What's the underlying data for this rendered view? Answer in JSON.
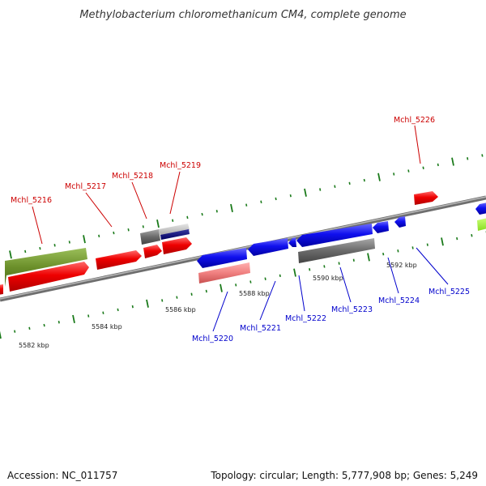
{
  "title": "Methylobacterium chloromethanicum CM4, complete genome",
  "footer": {
    "accession": "Accession: NC_011757",
    "stats": "Topology: circular; Length: 5,777,908 bp; Genes: 5,249"
  },
  "ruler_labels": [
    "5582 kbp",
    "5584 kbp",
    "5586 kbp",
    "5588 kbp",
    "5590 kbp",
    "5592 kbp"
  ],
  "colors": {
    "forward_label": "#cc0000",
    "reverse_label": "#0000cc",
    "tick_marks": "#1a7a1a",
    "backbone": "#888888"
  },
  "forward_genes": [
    {
      "label": "Mchl_5216"
    },
    {
      "label": "Mchl_5217"
    },
    {
      "label": "Mchl_5218"
    },
    {
      "label": "Mchl_5219"
    },
    {
      "label": "Mchl_5226"
    }
  ],
  "reverse_genes": [
    {
      "label": "Mchl_5220"
    },
    {
      "label": "Mchl_5221"
    },
    {
      "label": "Mchl_5222"
    },
    {
      "label": "Mchl_5223"
    },
    {
      "label": "Mchl_5224"
    },
    {
      "label": "Mchl_5225"
    }
  ]
}
